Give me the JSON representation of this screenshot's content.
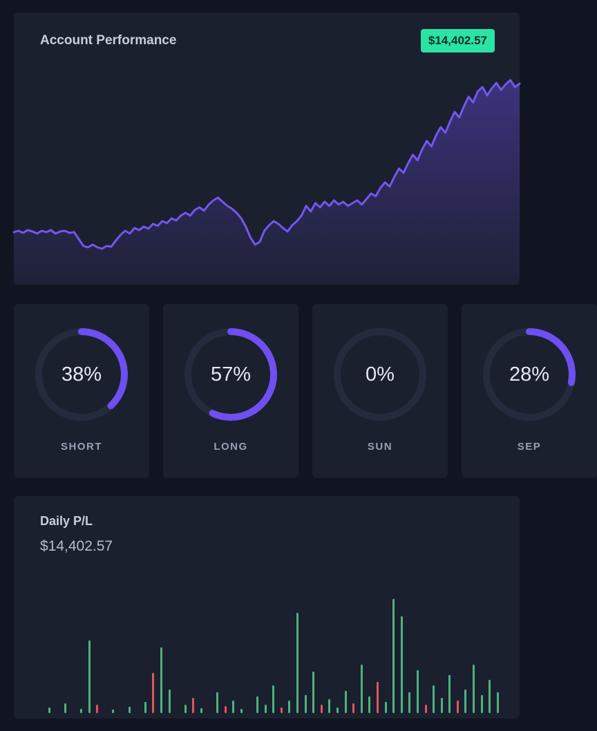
{
  "theme": {
    "bg": "#111522",
    "card_bg": "#1a202e",
    "accent_purple": "#6e4ff0",
    "ring_track": "#242b3d",
    "badge_bg": "#2be3a3",
    "badge_text": "#073327",
    "gain_green": "#4db380",
    "loss_red": "#e0565f"
  },
  "account_performance": {
    "title": "Account Performance",
    "badge_value": "$14,402.57",
    "chart_data": {
      "type": "area",
      "title": "Account Performance",
      "end_value_label": "$14,402.57",
      "line_color": "#7456f1",
      "note": "values are relative equity estimated from pixels, baseline 0 = starting balance",
      "values": [
        0,
        2,
        -1,
        3,
        1,
        -2,
        2,
        0,
        3,
        -2,
        1,
        2,
        -1,
        0,
        -10,
        -20,
        -22,
        -18,
        -22,
        -24,
        -20,
        -21,
        -12,
        -4,
        2,
        -2,
        6,
        3,
        8,
        5,
        12,
        9,
        16,
        13,
        20,
        17,
        24,
        28,
        24,
        32,
        36,
        31,
        40,
        46,
        50,
        44,
        38,
        34,
        28,
        20,
        8,
        -8,
        -18,
        -14,
        2,
        10,
        16,
        12,
        6,
        1,
        10,
        16,
        24,
        38,
        30,
        42,
        36,
        44,
        38,
        46,
        40,
        44,
        38,
        42,
        46,
        40,
        48,
        56,
        52,
        64,
        72,
        66,
        80,
        92,
        86,
        100,
        112,
        104,
        120,
        132,
        124,
        140,
        152,
        144,
        160,
        174,
        166,
        182,
        196,
        188,
        204,
        210,
        198,
        208,
        216,
        206,
        214,
        220,
        210,
        215
      ]
    }
  },
  "gauges": [
    {
      "value": 38,
      "display": "38%",
      "label": "SHORT"
    },
    {
      "value": 57,
      "display": "57%",
      "label": "LONG"
    },
    {
      "value": 0,
      "display": "0%",
      "label": "SUN"
    },
    {
      "value": 28,
      "display": "28%",
      "label": "SEP"
    }
  ],
  "daily_pl": {
    "title": "Daily P/L",
    "value": "$14,402.57",
    "chart_data": {
      "type": "bar",
      "title": "Daily P/L",
      "note": "bar heights estimated from pixels; c=g gain(green), c=r loss(red)",
      "bars": [
        [
          0,
          "g"
        ],
        [
          8,
          "g"
        ],
        [
          0,
          "g"
        ],
        [
          14,
          "g"
        ],
        [
          0,
          "g"
        ],
        [
          6,
          "g"
        ],
        [
          105,
          "g"
        ],
        [
          12,
          "r"
        ],
        [
          0,
          "g"
        ],
        [
          5,
          "g"
        ],
        [
          0,
          "g"
        ],
        [
          9,
          "g"
        ],
        [
          0,
          "g"
        ],
        [
          16,
          "g"
        ],
        [
          58,
          "r"
        ],
        [
          95,
          "g"
        ],
        [
          34,
          "g"
        ],
        [
          0,
          "g"
        ],
        [
          12,
          "g"
        ],
        [
          22,
          "r"
        ],
        [
          7,
          "g"
        ],
        [
          0,
          "g"
        ],
        [
          30,
          "g"
        ],
        [
          10,
          "r"
        ],
        [
          18,
          "g"
        ],
        [
          6,
          "g"
        ],
        [
          0,
          "g"
        ],
        [
          24,
          "g"
        ],
        [
          12,
          "g"
        ],
        [
          40,
          "g"
        ],
        [
          8,
          "r"
        ],
        [
          18,
          "g"
        ],
        [
          145,
          "g"
        ],
        [
          26,
          "g"
        ],
        [
          60,
          "g"
        ],
        [
          12,
          "r"
        ],
        [
          20,
          "g"
        ],
        [
          8,
          "g"
        ],
        [
          32,
          "g"
        ],
        [
          14,
          "r"
        ],
        [
          70,
          "g"
        ],
        [
          24,
          "g"
        ],
        [
          45,
          "r"
        ],
        [
          16,
          "g"
        ],
        [
          165,
          "g"
        ],
        [
          140,
          "g"
        ],
        [
          30,
          "g"
        ],
        [
          62,
          "g"
        ],
        [
          12,
          "r"
        ],
        [
          40,
          "g"
        ],
        [
          22,
          "g"
        ],
        [
          55,
          "g"
        ],
        [
          18,
          "r"
        ],
        [
          34,
          "g"
        ],
        [
          70,
          "g"
        ],
        [
          26,
          "g"
        ],
        [
          48,
          "g"
        ],
        [
          30,
          "g"
        ]
      ]
    }
  }
}
